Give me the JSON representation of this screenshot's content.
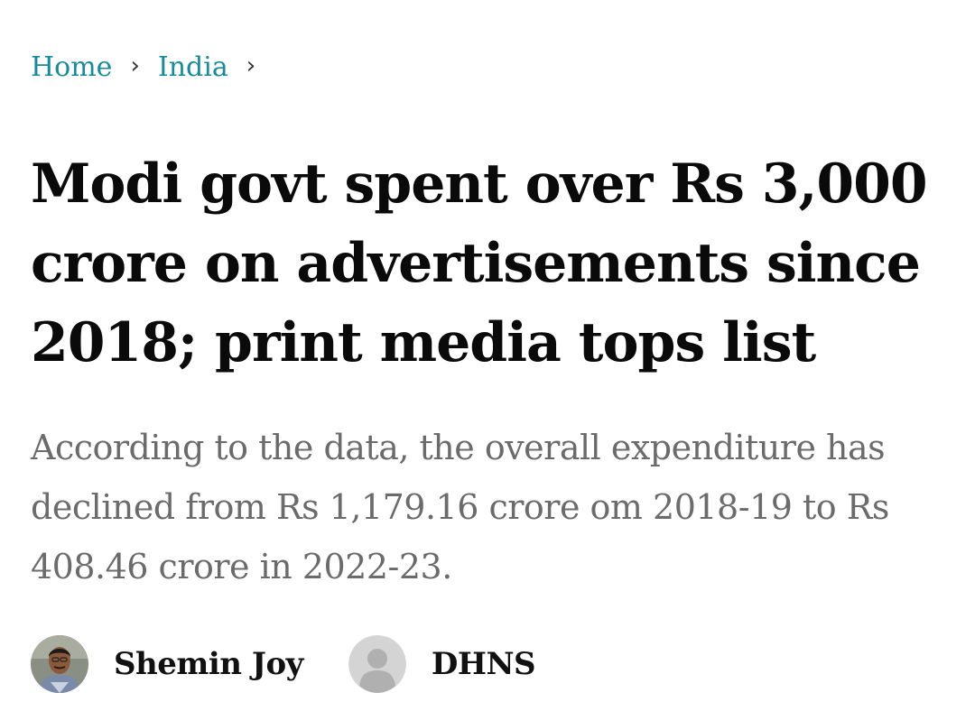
{
  "breadcrumb": {
    "items": [
      {
        "label": "Home"
      },
      {
        "label": "India"
      }
    ],
    "separator": "›"
  },
  "article": {
    "headline": "Modi govt spent over Rs 3,000 crore on advertisements since 2018; print media tops list",
    "standfirst": "According to the data, the overall expenditure has declined from Rs 1,179.16 crore om 2018-19 to Rs 408.46 crore in 2022-23."
  },
  "authors": [
    {
      "name": "Shemin Joy",
      "avatar": "author-photo"
    },
    {
      "name": "DHNS",
      "avatar": "default-user-icon"
    }
  ],
  "colors": {
    "link": "#1a8a9a",
    "headline": "#0a0a0a",
    "standfirst": "#6b6b6b",
    "placeholder_avatar_bg": "#d4d4d4",
    "placeholder_avatar_fg": "#b0b0b0"
  }
}
